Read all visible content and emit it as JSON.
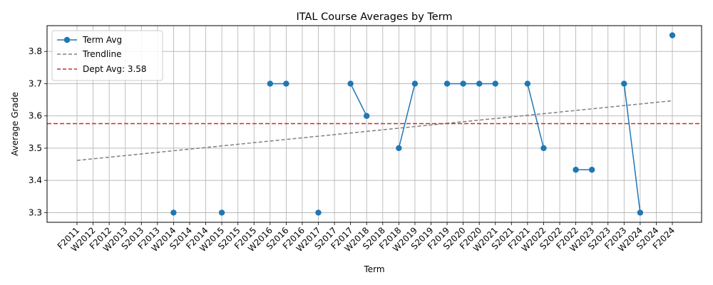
{
  "chart_data": {
    "type": "line",
    "title": "ITAL Course Averages by Term",
    "xlabel": "Term",
    "ylabel": "Average Grade",
    "categories": [
      "F2011",
      "W2012",
      "F2012",
      "W2013",
      "S2013",
      "F2013",
      "W2014",
      "S2014",
      "F2014",
      "W2015",
      "S2015",
      "F2015",
      "W2016",
      "S2016",
      "F2016",
      "W2017",
      "S2017",
      "F2017",
      "W2018",
      "S2018",
      "F2018",
      "W2019",
      "S2019",
      "F2019",
      "S2020",
      "F2020",
      "W2021",
      "S2021",
      "F2021",
      "W2022",
      "S2022",
      "F2022",
      "W2023",
      "S2023",
      "F2023",
      "W2024",
      "S2024",
      "F2024"
    ],
    "ylim": [
      3.27,
      3.88
    ],
    "yticks": [
      3.3,
      3.4,
      3.5,
      3.6,
      3.7,
      3.8
    ],
    "grid": true,
    "legend_position": "top-left",
    "series": [
      {
        "name": "Term Avg",
        "color": "#1f77b4",
        "marker": "circle",
        "values": [
          null,
          null,
          null,
          null,
          null,
          null,
          3.3,
          null,
          null,
          3.3,
          null,
          null,
          3.7,
          3.7,
          null,
          3.3,
          null,
          3.7,
          3.6,
          null,
          3.5,
          3.7,
          null,
          3.7,
          3.7,
          3.7,
          3.7,
          null,
          3.7,
          3.5,
          null,
          3.433,
          3.433,
          null,
          3.7,
          3.3,
          null,
          3.85
        ]
      },
      {
        "name": "Trendline",
        "color": "#808080",
        "style": "dashed",
        "start": 3.462,
        "end": 3.647
      },
      {
        "name": "Dept Avg: 3.58",
        "color": "#d62728",
        "style": "dashed",
        "value": 3.576
      }
    ]
  }
}
